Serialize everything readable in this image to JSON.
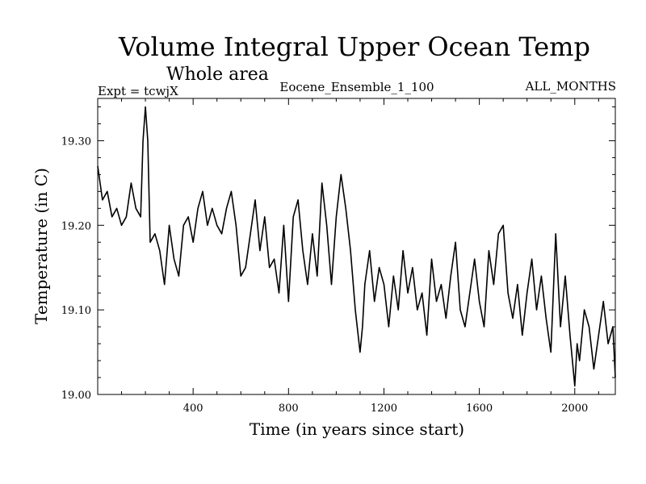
{
  "chart_data": {
    "type": "line",
    "title": "Volume Integral Upper Ocean Temp",
    "subtitle": "Whole area",
    "header_left": "Expt = tcwjX",
    "header_center": "Eocene_Ensemble_1_100",
    "header_right": "ALL_MONTHS",
    "xlabel": "Time (in years since start)",
    "ylabel": "Temperature (in C)",
    "xlim": [
      0,
      2170
    ],
    "ylim": [
      19.0,
      19.35
    ],
    "xticks": [
      400,
      800,
      1200,
      1600,
      2000
    ],
    "xtick_labels": [
      "400",
      "800",
      "1200",
      "1600",
      "2000"
    ],
    "yticks": [
      19.0,
      19.1,
      19.2,
      19.3
    ],
    "ytick_labels": [
      "19.00",
      "19.10",
      "19.20",
      "19.30"
    ],
    "grid": false,
    "legend": "none",
    "series": [
      {
        "color": "#000000",
        "x": [
          0,
          20,
          40,
          60,
          80,
          100,
          120,
          140,
          160,
          180,
          190,
          200,
          210,
          220,
          240,
          260,
          280,
          300,
          320,
          340,
          360,
          380,
          400,
          420,
          440,
          460,
          480,
          500,
          520,
          540,
          560,
          580,
          600,
          620,
          640,
          660,
          680,
          700,
          720,
          740,
          760,
          780,
          800,
          820,
          840,
          860,
          880,
          900,
          920,
          940,
          960,
          980,
          1000,
          1020,
          1040,
          1060,
          1080,
          1100,
          1110,
          1120,
          1140,
          1160,
          1180,
          1200,
          1220,
          1240,
          1260,
          1280,
          1300,
          1320,
          1340,
          1360,
          1380,
          1400,
          1420,
          1440,
          1460,
          1480,
          1500,
          1520,
          1540,
          1560,
          1580,
          1600,
          1620,
          1640,
          1660,
          1680,
          1700,
          1720,
          1740,
          1760,
          1780,
          1800,
          1820,
          1840,
          1860,
          1880,
          1900,
          1920,
          1940,
          1960,
          1980,
          2000,
          2010,
          2020,
          2040,
          2060,
          2080,
          2100,
          2120,
          2140,
          2160,
          2170
        ],
        "y": [
          19.27,
          19.23,
          19.24,
          19.21,
          19.22,
          19.2,
          19.21,
          19.25,
          19.22,
          19.21,
          19.3,
          19.34,
          19.3,
          19.18,
          19.19,
          19.17,
          19.13,
          19.2,
          19.16,
          19.14,
          19.2,
          19.21,
          19.18,
          19.22,
          19.24,
          19.2,
          19.22,
          19.2,
          19.19,
          19.22,
          19.24,
          19.2,
          19.14,
          19.15,
          19.19,
          19.23,
          19.17,
          19.21,
          19.15,
          19.16,
          19.12,
          19.2,
          19.11,
          19.21,
          19.23,
          19.17,
          19.13,
          19.19,
          19.14,
          19.25,
          19.2,
          19.13,
          19.21,
          19.26,
          19.22,
          19.17,
          19.1,
          19.05,
          19.08,
          19.13,
          19.17,
          19.11,
          19.15,
          19.13,
          19.08,
          19.14,
          19.1,
          19.17,
          19.12,
          19.15,
          19.1,
          19.12,
          19.07,
          19.16,
          19.11,
          19.13,
          19.09,
          19.14,
          19.18,
          19.1,
          19.08,
          19.12,
          19.16,
          19.11,
          19.08,
          19.17,
          19.13,
          19.19,
          19.2,
          19.12,
          19.09,
          19.13,
          19.07,
          19.12,
          19.16,
          19.1,
          19.14,
          19.09,
          19.05,
          19.19,
          19.08,
          19.14,
          19.07,
          19.01,
          19.06,
          19.04,
          19.1,
          19.08,
          19.03,
          19.07,
          19.11,
          19.06,
          19.08,
          19.02
        ]
      }
    ]
  }
}
